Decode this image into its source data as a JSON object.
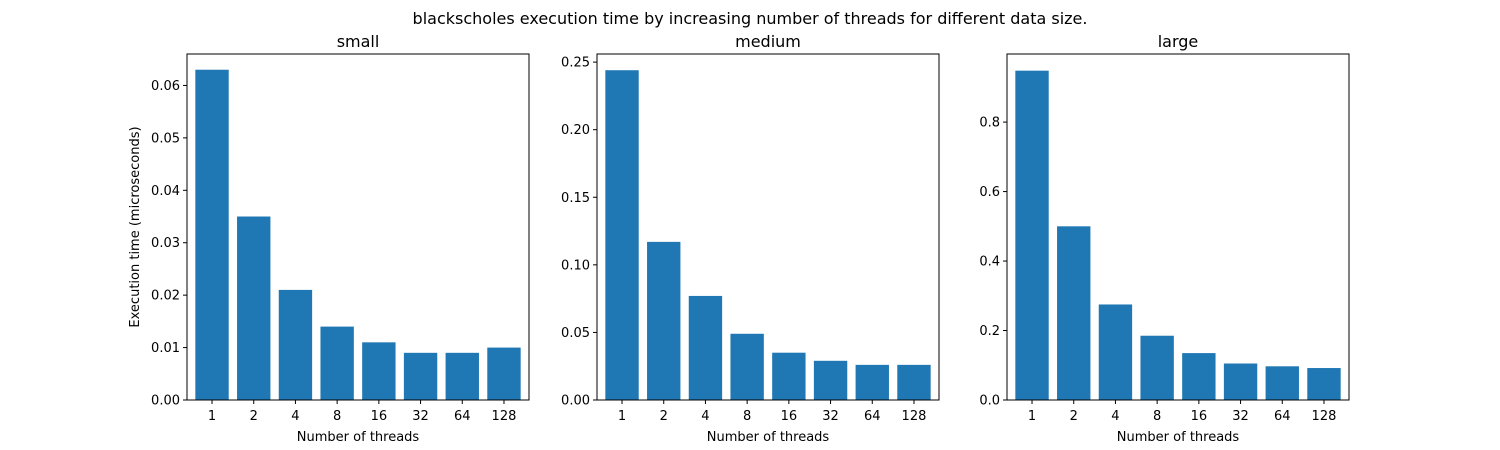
{
  "figure": {
    "suptitle": "blackscholes execution time by increasing number of threads for different data size."
  },
  "chart_data": [
    {
      "type": "bar",
      "title": "small",
      "xlabel": "Number of threads",
      "ylabel": "Execution time (microseconds)",
      "categories": [
        "1",
        "2",
        "4",
        "8",
        "16",
        "32",
        "64",
        "128"
      ],
      "values": [
        0.063,
        0.035,
        0.021,
        0.014,
        0.011,
        0.009,
        0.009,
        0.01
      ],
      "ylim": [
        0,
        0.066
      ],
      "yticks": [
        0.0,
        0.01,
        0.02,
        0.03,
        0.04,
        0.05,
        0.06
      ],
      "ytick_labels": [
        "0.00",
        "0.01",
        "0.02",
        "0.03",
        "0.04",
        "0.05",
        "0.06"
      ],
      "bar_color": "#1f77b4",
      "grid": false,
      "legend": "none"
    },
    {
      "type": "bar",
      "title": "medium",
      "xlabel": "Number of threads",
      "ylabel": "",
      "categories": [
        "1",
        "2",
        "4",
        "8",
        "16",
        "32",
        "64",
        "128"
      ],
      "values": [
        0.244,
        0.117,
        0.077,
        0.049,
        0.035,
        0.029,
        0.026,
        0.026
      ],
      "ylim": [
        0,
        0.256
      ],
      "yticks": [
        0.0,
        0.05,
        0.1,
        0.15,
        0.2,
        0.25
      ],
      "ytick_labels": [
        "0.00",
        "0.05",
        "0.10",
        "0.15",
        "0.20",
        "0.25"
      ],
      "bar_color": "#1f77b4",
      "grid": false,
      "legend": "none"
    },
    {
      "type": "bar",
      "title": "large",
      "xlabel": "Number of threads",
      "ylabel": "",
      "categories": [
        "1",
        "2",
        "4",
        "8",
        "16",
        "32",
        "64",
        "128"
      ],
      "values": [
        0.948,
        0.5,
        0.275,
        0.185,
        0.135,
        0.105,
        0.097,
        0.092
      ],
      "ylim": [
        0,
        0.996
      ],
      "yticks": [
        0.0,
        0.2,
        0.4,
        0.6,
        0.8
      ],
      "ytick_labels": [
        "0.0",
        "0.2",
        "0.4",
        "0.6",
        "0.8"
      ],
      "bar_color": "#1f77b4",
      "grid": false,
      "legend": "none"
    }
  ]
}
